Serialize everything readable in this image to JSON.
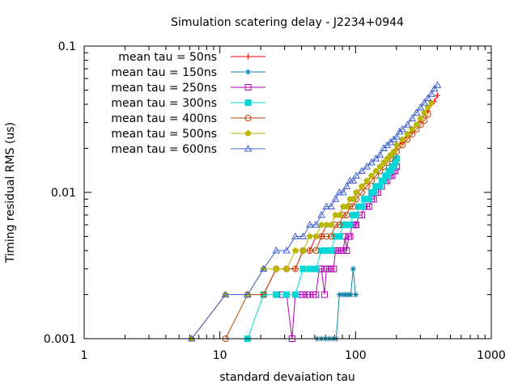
{
  "chart_data": {
    "type": "line",
    "title": "Simulation scatering delay - J2234+0944",
    "xlabel": "standard devaiation tau",
    "ylabel": "Timing residual RMS (us)",
    "x_scale": "log",
    "y_scale": "log",
    "xlim": [
      1,
      1000
    ],
    "ylim": [
      0.001,
      0.1
    ],
    "x_ticks": [
      1,
      10,
      100,
      1000
    ],
    "x_tick_labels": [
      "1",
      "10",
      "100",
      "1000"
    ],
    "y_ticks": [
      0.001,
      0.01,
      0.1
    ],
    "y_tick_labels": [
      "0.001",
      "0.01",
      "0.1"
    ],
    "grid": false,
    "legend_position": "top-left",
    "series": [
      {
        "name": "mean tau = 50ns",
        "color": "#ff0000",
        "marker": "plus",
        "x": [
          6.2,
          11,
          16,
          21,
          26,
          31,
          36,
          41,
          46,
          51,
          56,
          61,
          66,
          71,
          76,
          81,
          86,
          91,
          96,
          101,
          121,
          151,
          181,
          221,
          261,
          301,
          341,
          381,
          401
        ],
        "y": [
          0.001,
          0.002,
          0.002,
          0.002,
          0.003,
          0.003,
          0.003,
          0.004,
          0.004,
          0.005,
          0.005,
          0.006,
          0.006,
          0.007,
          0.007,
          0.008,
          0.008,
          0.009,
          0.009,
          0.01,
          0.012,
          0.015,
          0.018,
          0.022,
          0.026,
          0.031,
          0.036,
          0.042,
          0.046
        ]
      },
      {
        "name": "mean tau = 150ns",
        "color": "#0a7fa8",
        "marker": "star",
        "x": [
          52,
          56,
          60,
          64,
          68,
          72,
          76,
          80,
          84,
          88,
          92,
          96,
          100
        ],
        "y": [
          0.001,
          0.001,
          0.001,
          0.001,
          0.001,
          0.001,
          0.002,
          0.002,
          0.002,
          0.002,
          0.002,
          0.003,
          0.002
        ]
      },
      {
        "name": "mean tau = 250ns",
        "color": "#b000b0",
        "marker": "open-square",
        "x": [
          26,
          29,
          31,
          34,
          36,
          39,
          41,
          44,
          46,
          49,
          51,
          54,
          56,
          59,
          61,
          64,
          66,
          69,
          71,
          74,
          76,
          79,
          81,
          84,
          86,
          89,
          91,
          94,
          96,
          99,
          101,
          106,
          111,
          116,
          121,
          126,
          131,
          136,
          141,
          146,
          151,
          156,
          161,
          166,
          171,
          176,
          181,
          186,
          191,
          196,
          201
        ],
        "y": [
          0.002,
          0.002,
          0.002,
          0.001,
          0.002,
          0.002,
          0.002,
          0.002,
          0.002,
          0.002,
          0.002,
          0.003,
          0.003,
          0.002,
          0.003,
          0.003,
          0.003,
          0.003,
          0.004,
          0.004,
          0.004,
          0.004,
          0.004,
          0.005,
          0.004,
          0.005,
          0.005,
          0.006,
          0.006,
          0.006,
          0.006,
          0.007,
          0.007,
          0.008,
          0.008,
          0.008,
          0.009,
          0.009,
          0.01,
          0.01,
          0.011,
          0.011,
          0.012,
          0.012,
          0.012,
          0.013,
          0.013,
          0.013,
          0.014,
          0.014,
          0.015
        ]
      },
      {
        "name": "mean tau = 300ns",
        "color": "#00d8d8",
        "marker": "filled-square",
        "x": [
          16,
          21,
          26,
          31,
          36,
          41,
          46,
          51,
          56,
          61,
          66,
          71,
          76,
          81,
          86,
          91,
          96,
          101,
          106,
          111,
          116,
          121,
          126,
          131,
          136,
          141,
          146,
          151,
          156,
          161,
          166,
          171,
          176,
          181,
          186,
          191,
          196,
          201
        ],
        "y": [
          0.001,
          0.002,
          0.002,
          0.002,
          0.002,
          0.003,
          0.003,
          0.003,
          0.004,
          0.004,
          0.004,
          0.005,
          0.005,
          0.006,
          0.006,
          0.006,
          0.007,
          0.007,
          0.008,
          0.008,
          0.009,
          0.009,
          0.009,
          0.01,
          0.01,
          0.011,
          0.011,
          0.011,
          0.012,
          0.012,
          0.013,
          0.013,
          0.014,
          0.014,
          0.015,
          0.015,
          0.016,
          0.017
        ]
      },
      {
        "name": "mean tau = 400ns",
        "color": "#c04000",
        "marker": "open-circle",
        "x": [
          11,
          16,
          21,
          26,
          31,
          36,
          41,
          46,
          51,
          56,
          61,
          66,
          71,
          76,
          81,
          86,
          91,
          96,
          101,
          111,
          121,
          131,
          141,
          151,
          161,
          171,
          181,
          191,
          201,
          221,
          241,
          261,
          281,
          301,
          321,
          341
        ],
        "y": [
          0.001,
          0.002,
          0.002,
          0.003,
          0.003,
          0.003,
          0.004,
          0.004,
          0.004,
          0.005,
          0.005,
          0.005,
          0.006,
          0.006,
          0.007,
          0.007,
          0.008,
          0.008,
          0.009,
          0.01,
          0.011,
          0.012,
          0.013,
          0.014,
          0.015,
          0.016,
          0.017,
          0.018,
          0.019,
          0.021,
          0.023,
          0.025,
          0.027,
          0.029,
          0.031,
          0.034
        ]
      },
      {
        "name": "mean tau = 500ns",
        "color": "#b8b800",
        "marker": "filled-pentagon",
        "x": [
          6.2,
          11,
          16,
          21,
          26,
          31,
          36,
          41,
          46,
          51,
          56,
          61,
          66,
          71,
          76,
          81,
          86,
          91,
          96,
          101,
          111,
          121,
          131,
          141,
          151,
          161,
          171,
          181,
          191,
          201,
          221,
          241,
          261,
          281,
          301,
          321,
          341,
          361
        ],
        "y": [
          0.001,
          0.002,
          0.002,
          0.003,
          0.003,
          0.003,
          0.004,
          0.004,
          0.005,
          0.005,
          0.006,
          0.006,
          0.006,
          0.007,
          0.007,
          0.008,
          0.008,
          0.009,
          0.009,
          0.01,
          0.011,
          0.012,
          0.013,
          0.014,
          0.015,
          0.016,
          0.017,
          0.018,
          0.019,
          0.021,
          0.023,
          0.025,
          0.027,
          0.029,
          0.032,
          0.035,
          0.038,
          0.041
        ]
      },
      {
        "name": "mean tau = 600ns",
        "color": "#4060d0",
        "marker": "open-triangle",
        "x": [
          6.2,
          11,
          16,
          21,
          26,
          31,
          36,
          41,
          46,
          51,
          56,
          61,
          66,
          71,
          76,
          81,
          86,
          91,
          96,
          101,
          111,
          121,
          131,
          141,
          151,
          161,
          171,
          181,
          191,
          201,
          211,
          221,
          241,
          261,
          281,
          301,
          321,
          341,
          361,
          381,
          401
        ],
        "y": [
          0.001,
          0.002,
          0.002,
          0.003,
          0.004,
          0.004,
          0.005,
          0.005,
          0.006,
          0.006,
          0.007,
          0.008,
          0.008,
          0.009,
          0.01,
          0.01,
          0.011,
          0.012,
          0.012,
          0.013,
          0.014,
          0.015,
          0.016,
          0.017,
          0.018,
          0.02,
          0.021,
          0.022,
          0.023,
          0.024,
          0.026,
          0.027,
          0.029,
          0.032,
          0.035,
          0.038,
          0.041,
          0.044,
          0.047,
          0.051,
          0.054
        ]
      }
    ]
  }
}
